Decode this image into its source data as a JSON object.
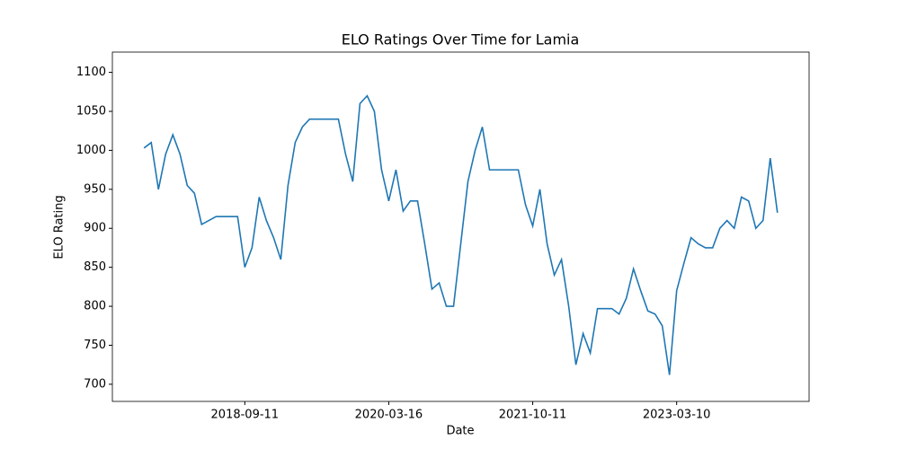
{
  "chart_data": {
    "type": "line",
    "title": "ELO Ratings Over Time for Lamia",
    "x_label": "Date",
    "y_label": "ELO Rating",
    "color": "#1f77b4",
    "categories": [
      null,
      null,
      null,
      null,
      null,
      null,
      null,
      null,
      null,
      null,
      null,
      null,
      null,
      null,
      "2018-09-11",
      null,
      null,
      null,
      null,
      null,
      null,
      null,
      null,
      null,
      null,
      null,
      null,
      null,
      null,
      null,
      null,
      null,
      null,
      null,
      "2020-03-16",
      null,
      null,
      null,
      null,
      null,
      null,
      null,
      null,
      null,
      null,
      null,
      null,
      null,
      null,
      null,
      null,
      null,
      null,
      null,
      "2021-10-11",
      null,
      null,
      null,
      null,
      null,
      null,
      null,
      null,
      null,
      null,
      null,
      null,
      null,
      null,
      null,
      null,
      null,
      null,
      null,
      "2023-03-10",
      null,
      null,
      null,
      null,
      null,
      null,
      null,
      null,
      null,
      null,
      null,
      null,
      null,
      null
    ],
    "values": [
      1003,
      1010,
      950,
      995,
      1020,
      995,
      955,
      945,
      905,
      910,
      915,
      915,
      915,
      915,
      850,
      875,
      940,
      910,
      888,
      860,
      955,
      1010,
      1030,
      1040,
      1040,
      1040,
      1040,
      1040,
      995,
      960,
      1060,
      1070,
      1050,
      975,
      935,
      975,
      922,
      935,
      935,
      880,
      822,
      830,
      800,
      800,
      880,
      960,
      1000,
      1030,
      975,
      975,
      975,
      975,
      975,
      930,
      903,
      950,
      880,
      840,
      860,
      800,
      725,
      765,
      740,
      797,
      797,
      797,
      790,
      810,
      848,
      820,
      794,
      790,
      775,
      712,
      820,
      855,
      888,
      880,
      875,
      875,
      900,
      910,
      900,
      940,
      935,
      900,
      910,
      990,
      920
    ],
    "ylim": [
      678,
      1126
    ],
    "yticks": [
      700,
      750,
      800,
      850,
      900,
      950,
      1000,
      1050,
      1100
    ]
  }
}
